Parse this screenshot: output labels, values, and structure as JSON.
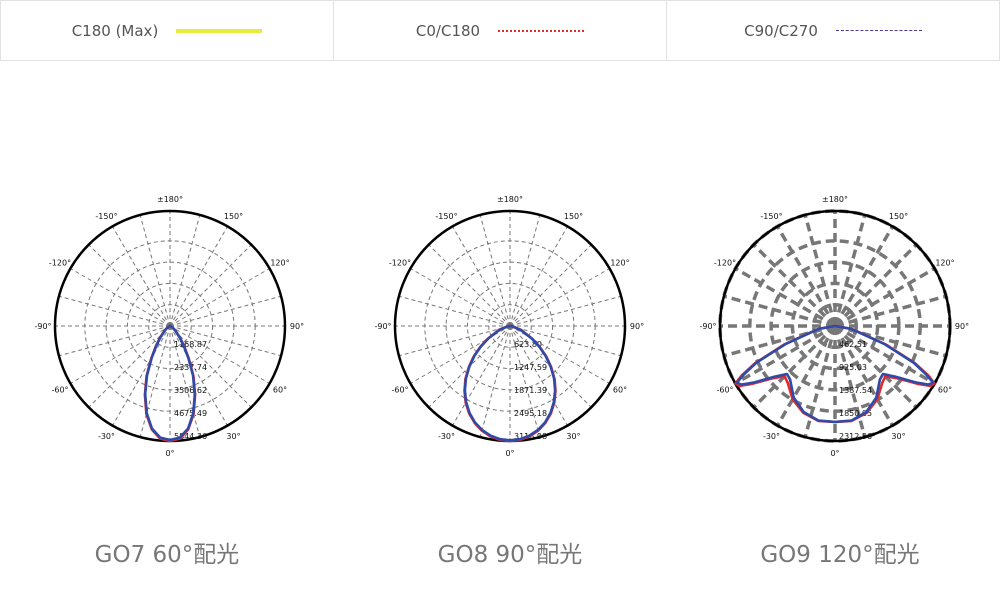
{
  "legend": [
    {
      "label": "C180 (Max)",
      "color": "#ece93e",
      "style": "solid"
    },
    {
      "label": "C0/C180",
      "color": "#e22a2a",
      "style": "dotted"
    },
    {
      "label": "C90/C270",
      "color": "#4a3a9a",
      "style": "dashdot"
    }
  ],
  "chart_data": [
    {
      "type": "polar",
      "title": "GO7 60°配光",
      "angle_labels": [
        "±180°",
        "150°",
        "120°",
        "90°",
        "60°",
        "30°",
        "0°",
        "-30°",
        "-60°",
        "-90°",
        "-120°",
        "-150°"
      ],
      "radial_max": 5800,
      "radial_labels": [
        "1168.87",
        "2337.74",
        "3506.62",
        "4675.49",
        "5844.36"
      ],
      "series": [
        {
          "name": "C0/C180",
          "color": "#e22a2a",
          "angles": [
            0,
            5,
            10,
            15,
            20,
            25,
            30,
            35,
            40,
            50,
            60,
            70,
            80,
            90
          ],
          "values": [
            5800,
            5700,
            5300,
            4600,
            3700,
            2800,
            1900,
            1250,
            800,
            350,
            150,
            60,
            20,
            0
          ]
        },
        {
          "name": "C90/C270",
          "color": "#2f4aa8",
          "angles": [
            0,
            5,
            10,
            15,
            20,
            25,
            30,
            35,
            40,
            50,
            60,
            70,
            80,
            90
          ],
          "values": [
            5750,
            5650,
            5250,
            4550,
            3650,
            2750,
            1850,
            1200,
            760,
            330,
            140,
            55,
            18,
            0
          ]
        }
      ]
    },
    {
      "type": "polar",
      "title": "GO8 90°配光",
      "angle_labels": [
        "±180°",
        "150°",
        "120°",
        "90°",
        "60°",
        "30°",
        "0°",
        "-30°",
        "-60°",
        "-90°",
        "-120°",
        "-150°"
      ],
      "radial_max": 3118,
      "radial_labels": [
        "623.80",
        "1247.59",
        "1871.39",
        "2495.18",
        "3118.98"
      ],
      "series": [
        {
          "name": "C0/C180",
          "color": "#e22a2a",
          "angles": [
            0,
            5,
            10,
            15,
            20,
            25,
            30,
            35,
            40,
            45,
            50,
            55,
            60,
            70,
            80,
            90
          ],
          "values": [
            3118,
            3100,
            3040,
            2940,
            2800,
            2620,
            2400,
            2150,
            1880,
            1580,
            1280,
            980,
            700,
            320,
            80,
            0
          ]
        },
        {
          "name": "C90/C270",
          "color": "#2f4aa8",
          "angles": [
            0,
            5,
            10,
            15,
            20,
            25,
            30,
            35,
            40,
            45,
            50,
            55,
            60,
            70,
            80,
            90
          ],
          "values": [
            3100,
            3080,
            3020,
            2920,
            2780,
            2600,
            2380,
            2130,
            1860,
            1560,
            1260,
            960,
            680,
            300,
            70,
            0
          ]
        }
      ]
    },
    {
      "type": "polar",
      "title": "GO9 120°配光",
      "angle_labels": [
        "±180°",
        "150°",
        "120°",
        "90°",
        "60°",
        "30°",
        "0°",
        "-30°",
        "-60°",
        "-90°",
        "-120°",
        "-150°"
      ],
      "radial_max": 2338,
      "radial_labels": [
        "462.51",
        "925.03",
        "1387.54",
        "1850.05",
        "2312.56"
      ],
      "series": [
        {
          "name": "C0/C180",
          "color": "#e22a2a",
          "angles": [
            0,
            10,
            20,
            30,
            40,
            45,
            50,
            55,
            58,
            60,
            62,
            65,
            70,
            80,
            90
          ],
          "values": [
            1950,
            1960,
            1880,
            1720,
            1500,
            1450,
            1650,
            2050,
            2300,
            2330,
            2150,
            1800,
            1100,
            350,
            0
          ]
        },
        {
          "name": "C90/C270",
          "color": "#2f4aa8",
          "angles": [
            0,
            10,
            20,
            30,
            40,
            45,
            50,
            55,
            58,
            60,
            62,
            65,
            70,
            80,
            90
          ],
          "values": [
            1950,
            1950,
            1860,
            1680,
            1420,
            1380,
            1600,
            2000,
            2250,
            2300,
            2100,
            1760,
            1060,
            330,
            0
          ]
        }
      ]
    }
  ]
}
